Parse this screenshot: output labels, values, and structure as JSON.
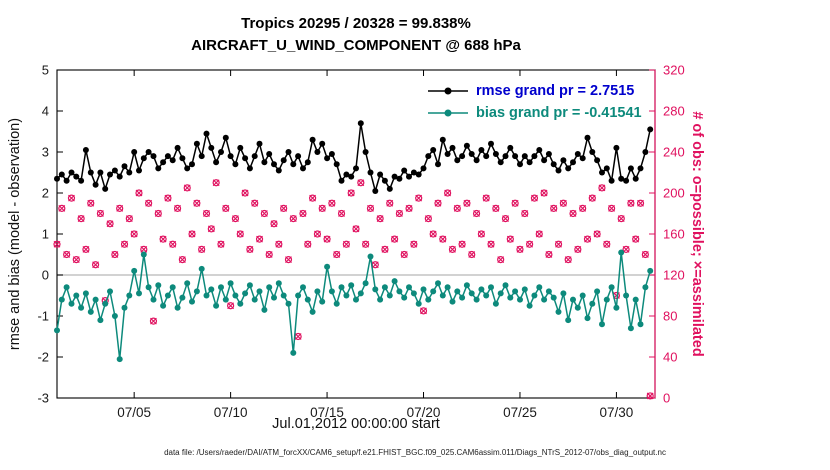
{
  "caption": "data file: /Users/raeder/DAI/ATM_forcXX/CAM6_setup/f.e21.FHIST_BGC.f09_025.CAM6assim.011/Diags_NTrS_2012-07/obs_diag_output.nc",
  "stats": {
    "region": "Tropics",
    "obs_possible": 20328,
    "obs_assimilated": 20295,
    "percent_assimilated": "99.838%"
  },
  "chart_data": {
    "type": "line",
    "title_line1": "Tropics 20295 / 20328 = 99.838%",
    "title_line2": "AIRCRAFT_U_WIND_COMPONENT @ 688 hPa",
    "xlabel": "Jul.01,2012 00:00:00 start",
    "x_unit": "day of July 2012",
    "x_start_day": 1,
    "x_step_days": 0.25,
    "x_range_days": [
      1,
      32
    ],
    "xticks": [
      {
        "day": 5,
        "label": "07/05"
      },
      {
        "day": 10,
        "label": "07/10"
      },
      {
        "day": 15,
        "label": "07/15"
      },
      {
        "day": 20,
        "label": "07/20"
      },
      {
        "day": 25,
        "label": "07/25"
      },
      {
        "day": 30,
        "label": "07/30"
      }
    ],
    "left_axis": {
      "label": "rmse and bias (model - observation)",
      "ylim": [
        -3,
        5
      ],
      "ticks": [
        -3,
        -2,
        -1,
        0,
        1,
        2,
        3,
        4,
        5
      ],
      "color": "#000000"
    },
    "right_axis": {
      "label": "# of obs: o=possible; ×=assimilated",
      "ylim": [
        0,
        320
      ],
      "ticks": [
        0,
        40,
        80,
        120,
        160,
        200,
        240,
        280,
        320
      ],
      "color": "#e0115f"
    },
    "zero_line_color": "#c3c3c3",
    "grid": false,
    "legend_position": "upper-right-inside",
    "series": [
      {
        "name": "rmse",
        "axis": "left",
        "color": "#000000",
        "marker": "filled-circle",
        "grand_pr": 2.7515,
        "legend_label": "rmse grand pr = 2.7515",
        "legend_text_color": "#0000cd",
        "values": [
          2.35,
          2.45,
          2.3,
          2.5,
          2.4,
          2.3,
          3.05,
          2.5,
          2.2,
          2.5,
          2.1,
          2.45,
          2.55,
          2.4,
          2.65,
          2.5,
          3.0,
          2.55,
          2.85,
          3.0,
          2.9,
          2.6,
          2.75,
          2.9,
          2.8,
          3.1,
          2.85,
          2.6,
          2.7,
          3.2,
          2.9,
          3.45,
          3.1,
          2.75,
          3.0,
          3.35,
          2.9,
          2.7,
          3.1,
          2.85,
          2.6,
          2.9,
          3.2,
          2.75,
          2.95,
          2.7,
          2.55,
          2.8,
          3.0,
          2.7,
          2.9,
          2.6,
          2.75,
          3.3,
          3.0,
          3.2,
          2.85,
          2.95,
          2.7,
          2.3,
          2.45,
          2.4,
          2.6,
          3.7,
          3.0,
          2.5,
          2.05,
          2.45,
          2.3,
          2.1,
          2.4,
          2.35,
          2.55,
          2.4,
          2.5,
          2.45,
          2.6,
          2.9,
          3.05,
          2.7,
          3.3,
          2.95,
          3.1,
          2.8,
          2.9,
          3.15,
          2.95,
          2.8,
          3.05,
          2.9,
          3.2,
          2.95,
          2.75,
          2.9,
          3.1,
          2.9,
          2.7,
          2.9,
          2.75,
          2.9,
          3.05,
          2.8,
          2.95,
          2.7,
          2.55,
          2.8,
          2.6,
          2.75,
          2.95,
          2.85,
          3.35,
          3.0,
          2.8,
          2.5,
          2.6,
          2.3,
          3.1,
          2.35,
          2.3,
          2.6,
          2.35,
          2.6,
          3.0,
          3.55
        ]
      },
      {
        "name": "bias",
        "axis": "left",
        "color": "#0d8a7c",
        "marker": "filled-circle",
        "grand_pr": -0.41541,
        "legend_label": "bias grand pr = -0.41541",
        "legend_text_color": "#0d8a7c",
        "values": [
          -1.35,
          -0.6,
          -0.3,
          -0.7,
          -0.5,
          -0.8,
          -0.45,
          -0.9,
          -0.6,
          -1.1,
          -0.7,
          -0.4,
          -1.0,
          -2.05,
          -0.8,
          -0.5,
          0.1,
          -0.45,
          0.5,
          -0.3,
          -0.6,
          -0.25,
          -0.75,
          -0.5,
          -0.3,
          -0.8,
          -0.55,
          -0.2,
          -0.65,
          -0.4,
          0.15,
          -0.5,
          -0.35,
          -0.75,
          -0.3,
          -0.6,
          -0.2,
          -0.5,
          -0.7,
          -0.45,
          -0.25,
          -0.6,
          -0.4,
          -0.85,
          -0.3,
          -0.55,
          -0.2,
          -0.5,
          -0.7,
          -1.9,
          -0.5,
          -0.3,
          -0.6,
          -0.9,
          -0.4,
          -0.65,
          0.2,
          -0.4,
          -0.7,
          -0.3,
          -0.5,
          -0.25,
          -0.6,
          -0.45,
          -0.2,
          0.45,
          -0.35,
          -0.6,
          -0.3,
          -0.5,
          -0.15,
          -0.4,
          -0.55,
          -0.3,
          -0.45,
          -0.7,
          -0.35,
          -0.6,
          -0.4,
          -0.2,
          -0.5,
          -0.3,
          -0.65,
          -0.4,
          -0.55,
          -0.25,
          -0.45,
          -0.6,
          -0.35,
          -0.5,
          -0.3,
          -0.7,
          -0.45,
          -0.25,
          -0.55,
          -0.4,
          -0.6,
          -0.35,
          -0.75,
          -0.5,
          -0.3,
          -0.6,
          -0.4,
          -0.55,
          -0.9,
          -0.45,
          -1.1,
          -0.6,
          -0.8,
          -0.5,
          -1.05,
          -0.7,
          -0.4,
          -1.2,
          -0.6,
          -0.3,
          -0.8,
          0.55,
          -0.5,
          -1.3,
          -0.6,
          -1.2,
          -0.3,
          0.1
        ]
      },
      {
        "name": "num_obs",
        "axis": "right",
        "color": "#e0115f",
        "marker": "o-and-x",
        "note": "o=possible and x=assimilated markers overlap (99.838% assimilated)",
        "values": [
          150,
          185,
          140,
          195,
          135,
          175,
          145,
          190,
          130,
          180,
          95,
          170,
          140,
          185,
          150,
          175,
          160,
          200,
          145,
          190,
          75,
          180,
          155,
          195,
          150,
          185,
          135,
          205,
          160,
          190,
          145,
          180,
          165,
          210,
          150,
          185,
          90,
          175,
          160,
          200,
          145,
          190,
          155,
          180,
          140,
          170,
          150,
          185,
          135,
          175,
          60,
          180,
          150,
          195,
          160,
          185,
          155,
          190,
          140,
          180,
          150,
          200,
          165,
          210,
          150,
          185,
          130,
          175,
          145,
          190,
          155,
          180,
          140,
          185,
          150,
          195,
          85,
          175,
          160,
          190,
          155,
          200,
          145,
          185,
          150,
          190,
          140,
          180,
          160,
          195,
          150,
          185,
          135,
          175,
          155,
          190,
          145,
          180,
          150,
          195,
          160,
          200,
          140,
          185,
          150,
          190,
          135,
          180,
          145,
          185,
          155,
          195,
          160,
          205,
          150,
          185,
          100,
          175,
          145,
          190,
          155,
          190,
          140,
          2
        ]
      }
    ]
  }
}
